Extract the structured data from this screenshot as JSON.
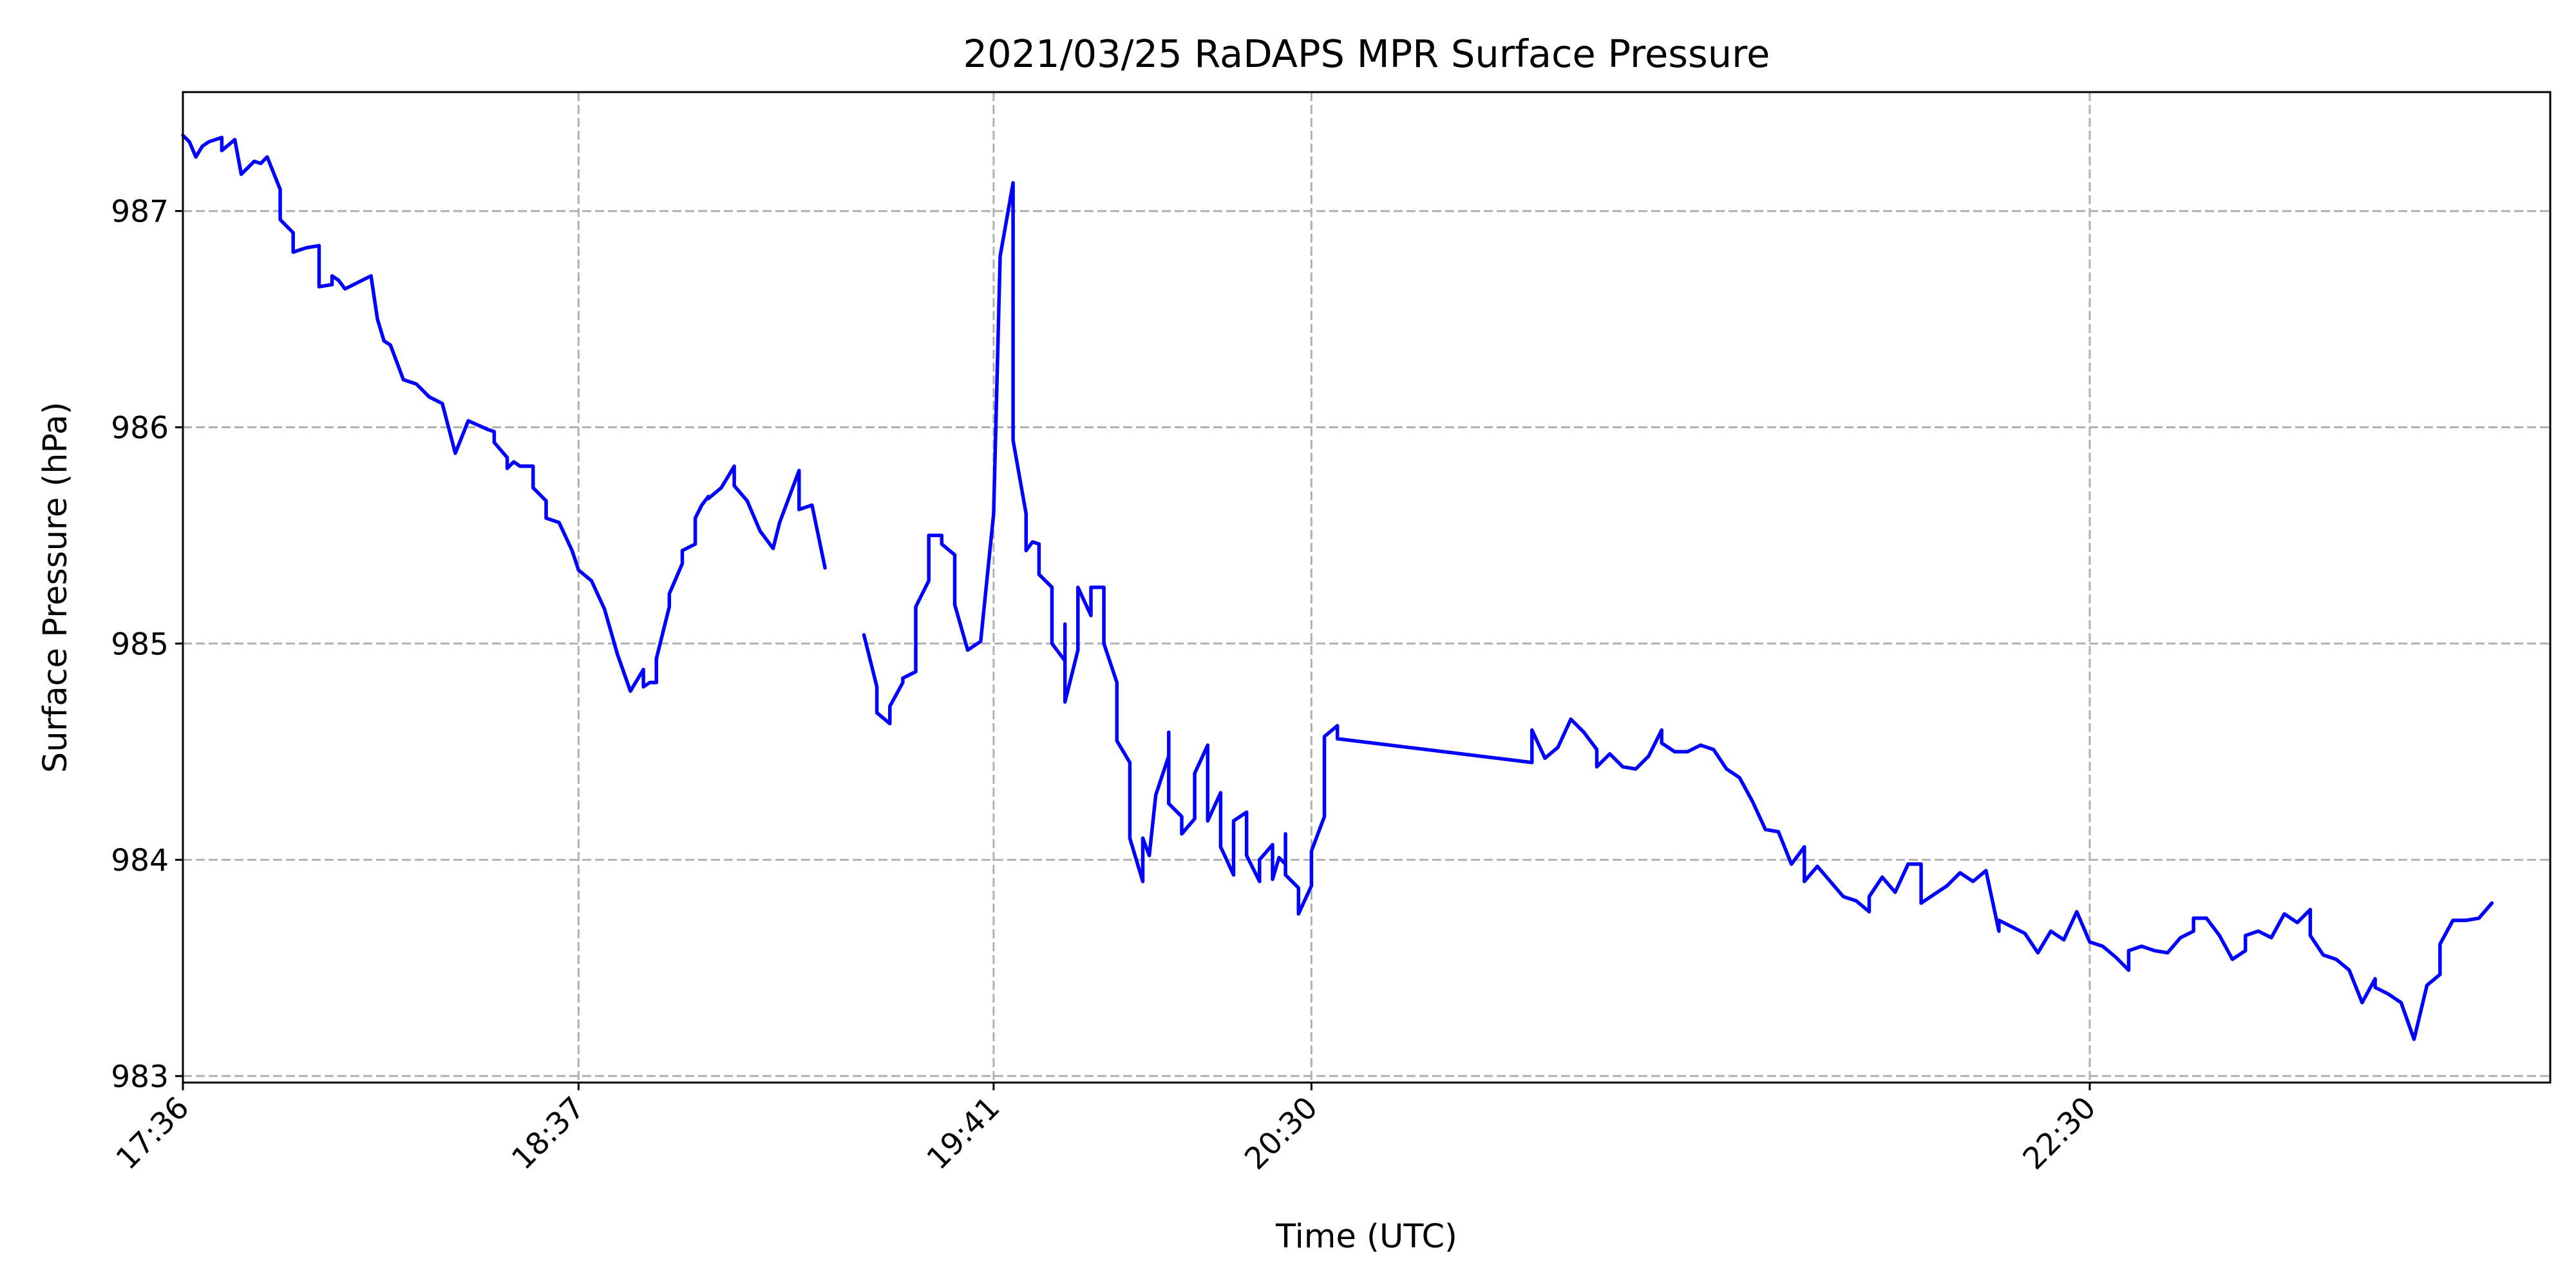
{
  "chart_data": {
    "type": "line",
    "title": "2021/03/25 RaDAPS MPR Surface Pressure",
    "xlabel": "Time (UTC)",
    "ylabel": "Surface Pressure (hPa)",
    "ylim": [
      982.97,
      987.55
    ],
    "xlim": [
      "17:36",
      "23:41"
    ],
    "grid": true,
    "line_color": "#0000ff",
    "x_ticks": [
      "17:36",
      "18:37",
      "19:41",
      "20:30",
      "22:30"
    ],
    "y_ticks": [
      983,
      984,
      985,
      986,
      987
    ],
    "series": [
      {
        "segments": [
          [
            [
              "17:36",
              987.35
            ],
            [
              "17:37",
              987.32
            ],
            [
              "17:38",
              987.25
            ],
            [
              "17:39",
              987.3
            ],
            [
              "17:40",
              987.32
            ],
            [
              "17:42",
              987.34
            ],
            [
              "17:42",
              987.28
            ],
            [
              "17:44",
              987.33
            ],
            [
              "17:45",
              987.17
            ],
            [
              "17:46",
              987.2
            ],
            [
              "17:47",
              987.23
            ],
            [
              "17:48",
              987.22
            ],
            [
              "17:49",
              987.25
            ],
            [
              "17:51",
              987.1
            ],
            [
              "17:51",
              986.96
            ],
            [
              "17:53",
              986.9
            ],
            [
              "17:53",
              986.81
            ],
            [
              "17:55",
              986.83
            ],
            [
              "17:57",
              986.84
            ],
            [
              "17:57",
              986.65
            ],
            [
              "17:59",
              986.66
            ],
            [
              "17:59",
              986.7
            ],
            [
              "18:00",
              986.68
            ],
            [
              "18:01",
              986.64
            ],
            [
              "18:05",
              986.7
            ],
            [
              "18:06",
              986.5
            ],
            [
              "18:07",
              986.4
            ],
            [
              "18:08",
              986.38
            ],
            [
              "18:10",
              986.22
            ],
            [
              "18:12",
              986.2
            ],
            [
              "18:14",
              986.14
            ],
            [
              "18:16",
              986.11
            ],
            [
              "18:18",
              985.88
            ],
            [
              "18:20",
              986.03
            ],
            [
              "18:23",
              985.99
            ],
            [
              "18:24",
              985.98
            ],
            [
              "18:24",
              985.93
            ],
            [
              "18:26",
              985.86
            ],
            [
              "18:26",
              985.81
            ],
            [
              "18:27",
              985.84
            ],
            [
              "18:28",
              985.82
            ],
            [
              "18:30",
              985.82
            ],
            [
              "18:30",
              985.72
            ],
            [
              "18:32",
              985.66
            ],
            [
              "18:32",
              985.58
            ],
            [
              "18:34",
              985.56
            ],
            [
              "18:36",
              985.43
            ],
            [
              "18:37",
              985.34
            ],
            [
              "18:39",
              985.29
            ],
            [
              "18:41",
              985.16
            ],
            [
              "18:43",
              984.95
            ],
            [
              "18:45",
              984.78
            ],
            [
              "18:47",
              984.88
            ],
            [
              "18:47",
              984.8
            ],
            [
              "18:48",
              984.82
            ],
            [
              "18:49",
              984.82
            ],
            [
              "18:49",
              984.93
            ],
            [
              "18:51",
              985.17
            ],
            [
              "18:51",
              985.23
            ],
            [
              "18:53",
              985.37
            ],
            [
              "18:53",
              985.43
            ],
            [
              "18:55",
              985.46
            ],
            [
              "18:55",
              985.58
            ],
            [
              "18:56",
              985.64
            ],
            [
              "18:57",
              985.68
            ],
            [
              "18:57",
              985.67
            ],
            [
              "18:59",
              985.72
            ],
            [
              "19:01",
              985.82
            ],
            [
              "19:01",
              985.73
            ],
            [
              "19:03",
              985.66
            ],
            [
              "19:05",
              985.52
            ],
            [
              "19:07",
              985.44
            ],
            [
              "19:08",
              985.56
            ],
            [
              "19:11",
              985.8
            ],
            [
              "19:11",
              985.62
            ],
            [
              "19:13",
              985.64
            ],
            [
              "19:15",
              985.35
            ]
          ],
          [
            [
              "19:21",
              985.04
            ],
            [
              "19:23",
              984.8
            ],
            [
              "19:23",
              984.68
            ],
            [
              "19:25",
              984.63
            ],
            [
              "19:25",
              984.71
            ],
            [
              "19:27",
              984.82
            ],
            [
              "19:27",
              984.84
            ],
            [
              "19:29",
              984.87
            ],
            [
              "19:29",
              985.17
            ],
            [
              "19:31",
              985.29
            ],
            [
              "19:31",
              985.5
            ],
            [
              "19:33",
              985.5
            ],
            [
              "19:33",
              985.46
            ],
            [
              "19:35",
              985.41
            ],
            [
              "19:35",
              985.18
            ],
            [
              "19:37",
              984.97
            ],
            [
              "19:39",
              985.01
            ],
            [
              "19:41",
              985.6
            ],
            [
              "19:42",
              986.79
            ],
            [
              "19:44",
              987.13
            ],
            [
              "19:44",
              985.94
            ],
            [
              "19:46",
              985.6
            ],
            [
              "19:46",
              985.43
            ],
            [
              "19:47",
              985.47
            ],
            [
              "19:48",
              985.46
            ],
            [
              "19:48",
              985.32
            ],
            [
              "19:50",
              985.26
            ],
            [
              "19:50",
              985.0
            ],
            [
              "19:52",
              984.92
            ],
            [
              "19:52",
              985.09
            ],
            [
              "19:52",
              984.73
            ],
            [
              "19:54",
              984.97
            ],
            [
              "19:54",
              985.26
            ],
            [
              "19:56",
              985.13
            ],
            [
              "19:56",
              985.26
            ],
            [
              "19:58",
              985.26
            ],
            [
              "19:58",
              985.0
            ],
            [
              "20:00",
              984.82
            ],
            [
              "20:00",
              984.55
            ],
            [
              "20:02",
              984.45
            ],
            [
              "20:02",
              984.1
            ],
            [
              "20:04",
              983.9
            ],
            [
              "20:04",
              984.1
            ],
            [
              "20:05",
              984.02
            ],
            [
              "20:06",
              984.3
            ],
            [
              "20:08",
              984.48
            ],
            [
              "20:08",
              984.59
            ],
            [
              "20:08",
              984.26
            ],
            [
              "20:10",
              984.2
            ],
            [
              "20:10",
              984.12
            ],
            [
              "20:12",
              984.19
            ],
            [
              "20:12",
              984.4
            ],
            [
              "20:14",
              984.53
            ],
            [
              "20:14",
              984.18
            ],
            [
              "20:16",
              984.31
            ],
            [
              "20:16",
              984.06
            ],
            [
              "20:18",
              983.93
            ],
            [
              "20:18",
              984.18
            ],
            [
              "20:20",
              984.22
            ],
            [
              "20:20",
              984.02
            ],
            [
              "20:22",
              983.9
            ],
            [
              "20:22",
              984.0
            ],
            [
              "20:24",
              984.07
            ],
            [
              "20:24",
              983.91
            ],
            [
              "20:25",
              984.01
            ],
            [
              "20:26",
              983.98
            ],
            [
              "20:26",
              984.12
            ],
            [
              "20:26",
              983.93
            ],
            [
              "20:28",
              983.87
            ],
            [
              "20:28",
              983.75
            ],
            [
              "20:30",
              983.88
            ],
            [
              "20:30",
              984.04
            ],
            [
              "20:32",
              984.2
            ],
            [
              "20:32",
              984.57
            ],
            [
              "20:34",
              984.62
            ],
            [
              "20:34",
              984.56
            ],
            [
              "21:04",
              984.45
            ],
            [
              "21:04",
              984.6
            ],
            [
              "21:06",
              984.47
            ],
            [
              "21:08",
              984.52
            ],
            [
              "21:10",
              984.65
            ],
            [
              "21:12",
              984.59
            ],
            [
              "21:14",
              984.51
            ],
            [
              "21:14",
              984.43
            ],
            [
              "21:16",
              984.49
            ],
            [
              "21:18",
              984.43
            ],
            [
              "21:20",
              984.42
            ],
            [
              "21:22",
              984.48
            ],
            [
              "21:24",
              984.6
            ],
            [
              "21:24",
              984.54
            ],
            [
              "21:26",
              984.5
            ],
            [
              "21:28",
              984.5
            ],
            [
              "21:30",
              984.53
            ],
            [
              "21:32",
              984.51
            ],
            [
              "21:34",
              984.42
            ],
            [
              "21:36",
              984.38
            ],
            [
              "21:38",
              984.27
            ],
            [
              "21:40",
              984.14
            ],
            [
              "21:42",
              984.13
            ],
            [
              "21:44",
              983.98
            ],
            [
              "21:46",
              984.06
            ],
            [
              "21:46",
              983.9
            ],
            [
              "21:48",
              983.97
            ],
            [
              "21:50",
              983.9
            ],
            [
              "21:52",
              983.83
            ],
            [
              "21:54",
              983.81
            ],
            [
              "21:56",
              983.76
            ],
            [
              "21:56",
              983.83
            ],
            [
              "21:58",
              983.92
            ],
            [
              "22:00",
              983.85
            ],
            [
              "22:02",
              983.98
            ],
            [
              "22:04",
              983.98
            ],
            [
              "22:04",
              983.8
            ],
            [
              "22:06",
              983.84
            ],
            [
              "22:08",
              983.88
            ],
            [
              "22:10",
              983.94
            ],
            [
              "22:12",
              983.9
            ],
            [
              "22:14",
              983.95
            ],
            [
              "22:16",
              983.67
            ],
            [
              "22:16",
              983.72
            ],
            [
              "22:18",
              983.69
            ],
            [
              "22:20",
              983.66
            ],
            [
              "22:22",
              983.57
            ],
            [
              "22:24",
              983.67
            ],
            [
              "22:26",
              983.63
            ],
            [
              "22:28",
              983.76
            ],
            [
              "22:30",
              983.62
            ],
            [
              "22:32",
              983.6
            ],
            [
              "22:34",
              983.55
            ],
            [
              "22:36",
              983.49
            ],
            [
              "22:36",
              983.58
            ],
            [
              "22:38",
              983.6
            ],
            [
              "22:40",
              983.58
            ],
            [
              "22:42",
              983.57
            ],
            [
              "22:44",
              983.64
            ],
            [
              "22:46",
              983.67
            ],
            [
              "22:46",
              983.73
            ],
            [
              "22:48",
              983.73
            ],
            [
              "22:50",
              983.65
            ],
            [
              "22:52",
              983.54
            ],
            [
              "22:54",
              983.58
            ],
            [
              "22:54",
              983.65
            ],
            [
              "22:56",
              983.67
            ],
            [
              "22:58",
              983.64
            ],
            [
              "23:00",
              983.75
            ],
            [
              "23:02",
              983.71
            ],
            [
              "23:04",
              983.77
            ],
            [
              "23:04",
              983.65
            ],
            [
              "23:06",
              983.56
            ],
            [
              "23:08",
              983.54
            ],
            [
              "23:10",
              983.49
            ],
            [
              "23:12",
              983.34
            ],
            [
              "23:14",
              983.45
            ],
            [
              "23:14",
              983.41
            ],
            [
              "23:16",
              983.38
            ],
            [
              "23:18",
              983.34
            ],
            [
              "23:20",
              983.17
            ],
            [
              "23:22",
              983.42
            ],
            [
              "23:24",
              983.47
            ],
            [
              "23:24",
              983.61
            ],
            [
              "23:26",
              983.72
            ],
            [
              "23:28",
              983.72
            ],
            [
              "23:30",
              983.73
            ],
            [
              "23:32",
              983.8
            ]
          ]
        ]
      }
    ]
  }
}
